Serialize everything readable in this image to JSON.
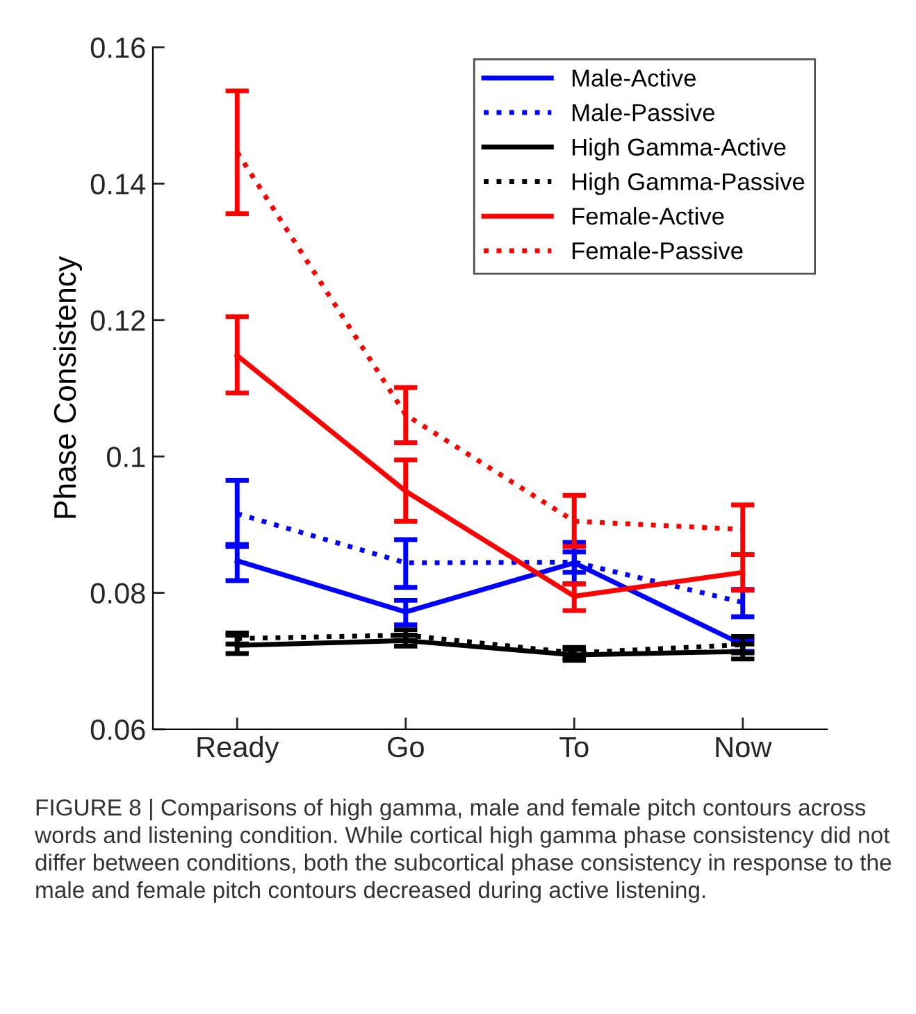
{
  "chart_data": {
    "type": "line",
    "ylabel": "Phase Consistency",
    "categories": [
      "Ready",
      "Go",
      "To",
      "Now"
    ],
    "series": [
      {
        "name": "Male-Active",
        "color": "#0000ff",
        "line_style": "solid",
        "values": [
          0.0847,
          0.0772,
          0.0844,
          0.0724
        ],
        "errors": [
          [
            0.0818,
            0.0871
          ],
          [
            0.0753,
            0.0789
          ],
          [
            0.0813,
            0.0874
          ],
          [
            0.0714,
            0.0731
          ]
        ]
      },
      {
        "name": "Male-Passive",
        "color": "#0000ff",
        "line_style": "dotted",
        "values": [
          0.0916,
          0.0844,
          0.0845,
          0.0786
        ],
        "errors": [
          [
            0.0868,
            0.0965
          ],
          [
            0.0808,
            0.0878
          ],
          [
            0.083,
            0.086
          ],
          [
            0.0765,
            0.0805
          ]
        ]
      },
      {
        "name": "High Gamma-Active",
        "color": "#000000",
        "line_style": "solid",
        "values": [
          0.0723,
          0.073,
          0.0709,
          0.0714
        ],
        "errors": [
          [
            0.0711,
            0.0738
          ],
          [
            0.0722,
            0.0738
          ],
          [
            0.0701,
            0.0717
          ],
          [
            0.0703,
            0.0725
          ]
        ]
      },
      {
        "name": "High Gamma-Passive",
        "color": "#000000",
        "line_style": "dotted",
        "values": [
          0.0733,
          0.0738,
          0.0712,
          0.0724
        ],
        "errors": [
          [
            0.0725,
            0.0741
          ],
          [
            0.073,
            0.0746
          ],
          [
            0.0704,
            0.072
          ],
          [
            0.0712,
            0.0736
          ]
        ]
      },
      {
        "name": "Female-Active",
        "color": "#ff0000",
        "line_style": "solid",
        "values": [
          0.1148,
          0.0949,
          0.0795,
          0.083
        ],
        "errors": [
          [
            0.1093,
            0.1205
          ],
          [
            0.0905,
            0.0995
          ],
          [
            0.0774,
            0.0813
          ],
          [
            0.0804,
            0.0856
          ]
        ]
      },
      {
        "name": "Female-Passive",
        "color": "#ff0000",
        "line_style": "dotted",
        "values": [
          0.1446,
          0.1061,
          0.0905,
          0.0893
        ],
        "errors": [
          [
            0.1356,
            0.1536
          ],
          [
            0.102,
            0.1101
          ],
          [
            0.0868,
            0.0943
          ],
          [
            0.0856,
            0.0929
          ]
        ]
      }
    ],
    "ylim": [
      0.06,
      0.16
    ],
    "yticks": [
      0.06,
      0.08,
      0.1,
      0.12,
      0.14,
      0.16
    ],
    "legend": "top right",
    "grid": false,
    "annotations": [
      "FIGURE 8 | Comparisons of high gamma, male and female pitch contours across words and listening condition. While cortical high gamma phase consistency did not differ between conditions, both the subcortical phase consistency in response to the male and female pitch contours decreased during active listening."
    ]
  }
}
